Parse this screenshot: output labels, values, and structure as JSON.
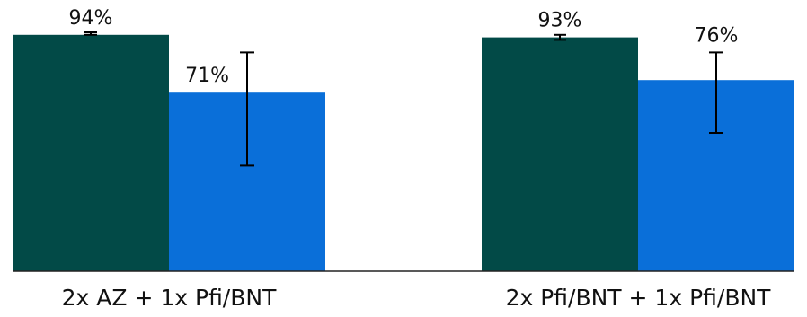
{
  "chart_data": {
    "type": "bar",
    "title": "",
    "xlabel": "",
    "ylabel": "",
    "ylim": [
      0,
      100
    ],
    "categories": [
      "2x AZ + 1x Pfi/BNT",
      "2x Pfi/BNT + 1x Pfi/BNT"
    ],
    "series": [
      {
        "color": "#024a47",
        "values": [
          94,
          93
        ],
        "value_labels": [
          "94%",
          "93%"
        ],
        "error_low": [
          94,
          92
        ],
        "error_high": [
          95,
          94
        ]
      },
      {
        "color": "#0a6fd9",
        "values": [
          71,
          76
        ],
        "value_labels": [
          "71%",
          "76%"
        ],
        "error_low": [
          42,
          55
        ],
        "error_high": [
          87,
          87
        ]
      }
    ],
    "grid": false,
    "legend": "none"
  }
}
